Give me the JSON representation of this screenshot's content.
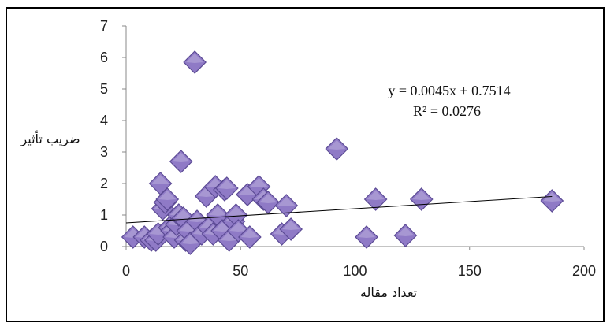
{
  "chart_data": {
    "type": "scatter",
    "xlabel": "تعداد مقاله",
    "ylabel": "ضريب تأثير",
    "xlim": [
      0,
      200
    ],
    "ylim": [
      0,
      7
    ],
    "xticks": [
      0,
      50,
      100,
      150,
      200
    ],
    "yticks": [
      0,
      1,
      2,
      3,
      4,
      5,
      6,
      7
    ],
    "gridlines": false,
    "marker": {
      "shape": "diamond",
      "color": "#8f7ac6",
      "stroke": "#5b4a94"
    },
    "trendline": {
      "type": "linear",
      "slope": 0.0045,
      "intercept": 0.7514,
      "color": "#000000"
    },
    "annotations": {
      "equation": "y = 0.0045x + 0.7514",
      "r_squared": "R² = 0.0276"
    },
    "series": [
      {
        "points": [
          [
            3,
            0.3
          ],
          [
            8,
            0.3
          ],
          [
            11,
            0.2
          ],
          [
            13,
            0.2
          ],
          [
            14,
            0.4
          ],
          [
            15,
            2.0
          ],
          [
            16,
            1.2
          ],
          [
            17,
            1.4
          ],
          [
            18,
            1.5
          ],
          [
            19,
            0.6
          ],
          [
            20,
            0.5
          ],
          [
            21,
            0.3
          ],
          [
            22,
            0.7
          ],
          [
            23,
            1.0
          ],
          [
            24,
            2.7
          ],
          [
            25,
            0.9
          ],
          [
            26,
            0.2
          ],
          [
            27,
            0.5
          ],
          [
            28,
            0.1
          ],
          [
            30,
            5.85
          ],
          [
            31,
            0.8
          ],
          [
            33,
            0.4
          ],
          [
            35,
            1.6
          ],
          [
            36,
            0.6
          ],
          [
            38,
            0.4
          ],
          [
            39,
            1.9
          ],
          [
            40,
            1.0
          ],
          [
            42,
            0.5
          ],
          [
            43,
            1.8
          ],
          [
            44,
            1.85
          ],
          [
            45,
            0.2
          ],
          [
            47,
            0.8
          ],
          [
            48,
            1.0
          ],
          [
            49,
            0.5
          ],
          [
            53,
            1.65
          ],
          [
            54,
            0.3
          ],
          [
            58,
            1.9
          ],
          [
            60,
            1.5
          ],
          [
            62,
            1.4
          ],
          [
            68,
            0.4
          ],
          [
            70,
            1.3
          ],
          [
            72,
            0.55
          ],
          [
            92,
            3.1
          ],
          [
            105,
            0.3
          ],
          [
            109,
            1.5
          ],
          [
            122,
            0.35
          ],
          [
            129,
            1.5
          ],
          [
            186,
            1.45
          ]
        ]
      }
    ]
  }
}
